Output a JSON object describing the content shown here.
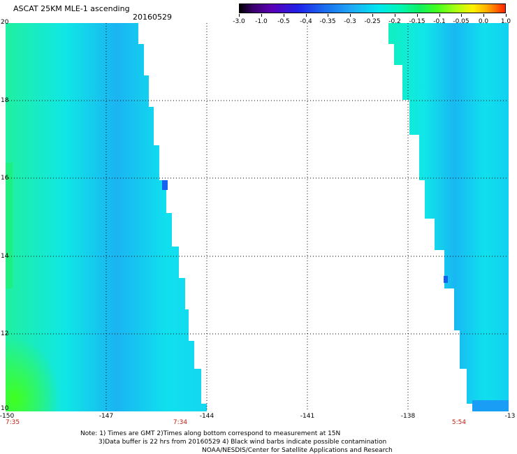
{
  "header": {
    "title": "ASCAT 25KM MLE-1 ascending",
    "date": "20160529"
  },
  "colorbar": {
    "labels": [
      "-3.0",
      "-1.0",
      "-0.5",
      "-0.4",
      "-0.35",
      "-0.3",
      "-0.25",
      "-0.2",
      "-0.15",
      "-0.1",
      "-0.05",
      "0.0",
      "1.0"
    ]
  },
  "map": {
    "y_labels": [
      "20",
      "18",
      "16",
      "14",
      "12",
      "10"
    ],
    "x_labels": [
      "-150",
      "-147",
      "-144",
      "-141",
      "-138",
      "-13"
    ],
    "time_labels": [
      "7:35",
      "7:34",
      "5:54"
    ],
    "colors": {
      "cyan": "#00e8f0",
      "blue": "#1a9ef5",
      "green": "#20f040",
      "time": "#c02010"
    }
  },
  "notes": {
    "line1": "Note: 1) Times are GMT 2)Times along bottom correspond to measurement at 15N",
    "line2": "3)Data buffer is 22 hrs from 20160529 4) Black wind barbs indicate possible contamination",
    "line3": "NOAA/NESDIS/Center for Satellite Applications and Research"
  }
}
